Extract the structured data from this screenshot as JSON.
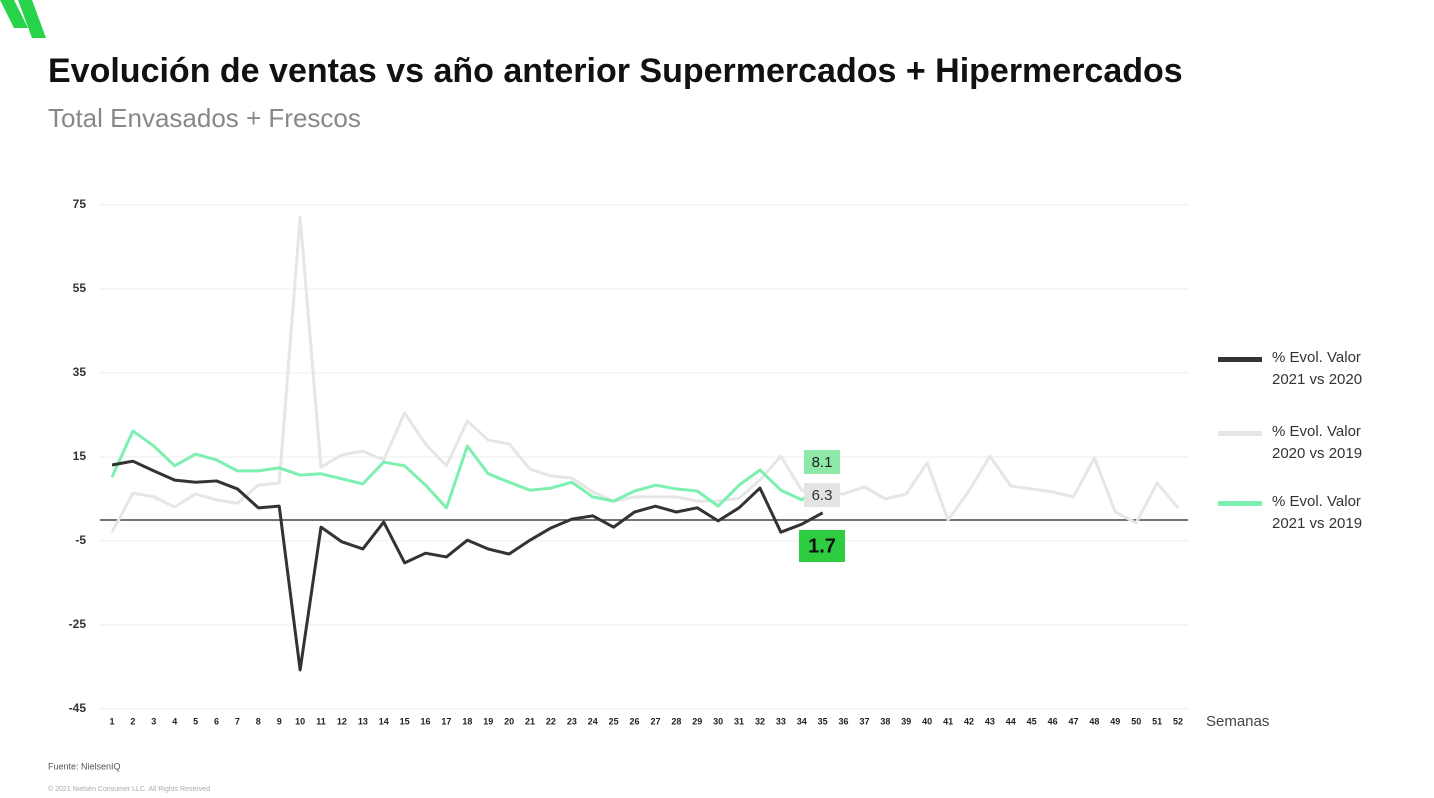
{
  "chart_data": {
    "type": "line",
    "title": "Evolución de ventas vs año anterior Supermercados + Hipermercados",
    "subtitle": "Total Envasados + Frescos",
    "x_label": "Semanas",
    "source": "Fuente: NielsenIQ",
    "copyright": "© 2021 Nielsen Consumer LLC. All Rights Reserved",
    "categories": [
      "1",
      "2",
      "3",
      "4",
      "5",
      "6",
      "7",
      "8",
      "9",
      "10",
      "11",
      "12",
      "13",
      "14",
      "15",
      "16",
      "17",
      "18",
      "19",
      "20",
      "21",
      "22",
      "23",
      "24",
      "25",
      "26",
      "27",
      "28",
      "29",
      "30",
      "31",
      "32",
      "33",
      "34",
      "35",
      "36",
      "37",
      "38",
      "39",
      "40",
      "41",
      "42",
      "43",
      "44",
      "45",
      "46",
      "47",
      "48",
      "49",
      "50",
      "51",
      "52"
    ],
    "ylim": [
      -45,
      75
    ],
    "yticks": [
      -45,
      -25,
      -5,
      15,
      35,
      55,
      75
    ],
    "grid": true,
    "legend": "right",
    "series": [
      {
        "name": "% Evol. Valor 2021 vs 2020",
        "color": "#333333",
        "values": [
          13.1,
          14.0,
          11.7,
          9.5,
          9.0,
          9.3,
          7.4,
          2.9,
          3.3,
          -35.7,
          -1.7,
          -5.2,
          -6.9,
          -0.5,
          -10.2,
          -7.9,
          -8.8,
          -4.8,
          -6.9,
          -8.1,
          -4.8,
          -1.9,
          0.2,
          1.0,
          -1.7,
          1.9,
          3.3,
          1.9,
          2.9,
          -0.2,
          2.9,
          7.6,
          -2.9,
          -1.0,
          1.7,
          null,
          null,
          null,
          null,
          null,
          null,
          null,
          null,
          null,
          null,
          null,
          null,
          null,
          null,
          null,
          null,
          null
        ]
      },
      {
        "name": "% Evol. Valor 2020 vs 2019",
        "color": "#e6e6e6",
        "values": [
          -2.9,
          6.4,
          5.5,
          3.1,
          6.2,
          4.8,
          4.0,
          8.3,
          8.8,
          72.1,
          12.6,
          15.5,
          16.4,
          14.3,
          25.5,
          18.1,
          12.9,
          23.6,
          19.0,
          18.1,
          12.1,
          10.5,
          10.0,
          6.7,
          4.5,
          5.5,
          5.5,
          5.5,
          4.5,
          4.5,
          5.2,
          9.5,
          15.2,
          7.1,
          6.3,
          6.2,
          7.9,
          5.0,
          6.2,
          13.6,
          0,
          6.9,
          15.2,
          8.1,
          7.4,
          6.7,
          5.5,
          14.8,
          1.9,
          -0.7,
          8.8,
          2.9
        ]
      },
      {
        "name": "% Evol. Valor 2021 vs 2019",
        "color": "#7cf0b0",
        "values": [
          10.2,
          21.2,
          17.6,
          12.9,
          15.7,
          14.3,
          11.7,
          11.7,
          12.4,
          10.7,
          11.0,
          9.8,
          8.6,
          13.8,
          12.9,
          8.3,
          2.9,
          17.6,
          11.0,
          9.0,
          7.1,
          7.6,
          9.0,
          5.5,
          4.5,
          6.9,
          8.3,
          7.4,
          6.9,
          3.3,
          8.3,
          11.9,
          7.1,
          4.8,
          8.1,
          null,
          null,
          null,
          null,
          null,
          null,
          null,
          null,
          null,
          null,
          null,
          null,
          null,
          null,
          null,
          null,
          null
        ]
      }
    ]
  }
}
